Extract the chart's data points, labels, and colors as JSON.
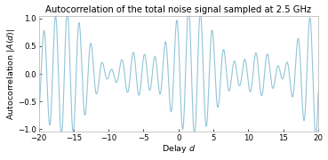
{
  "title": "Autocorrelation of the total noise signal sampled at 2.5 GHz",
  "xlabel": "Delay $d$",
  "ylabel": "Autocorrelation $|A(d)|$",
  "xlim": [
    -20,
    20
  ],
  "ylim": [
    -1.05,
    1.05
  ],
  "xticks": [
    -20,
    -15,
    -10,
    -5,
    0,
    5,
    10,
    15,
    20
  ],
  "yticks": [
    -1,
    -0.5,
    0,
    0.5,
    1
  ],
  "line_color": "#92c5d8",
  "line_width": 0.8,
  "background_color": "#ffffff",
  "title_fontsize": 7.2,
  "axis_fontsize": 6.8,
  "tick_fontsize": 6.2,
  "signal_seed": 17
}
